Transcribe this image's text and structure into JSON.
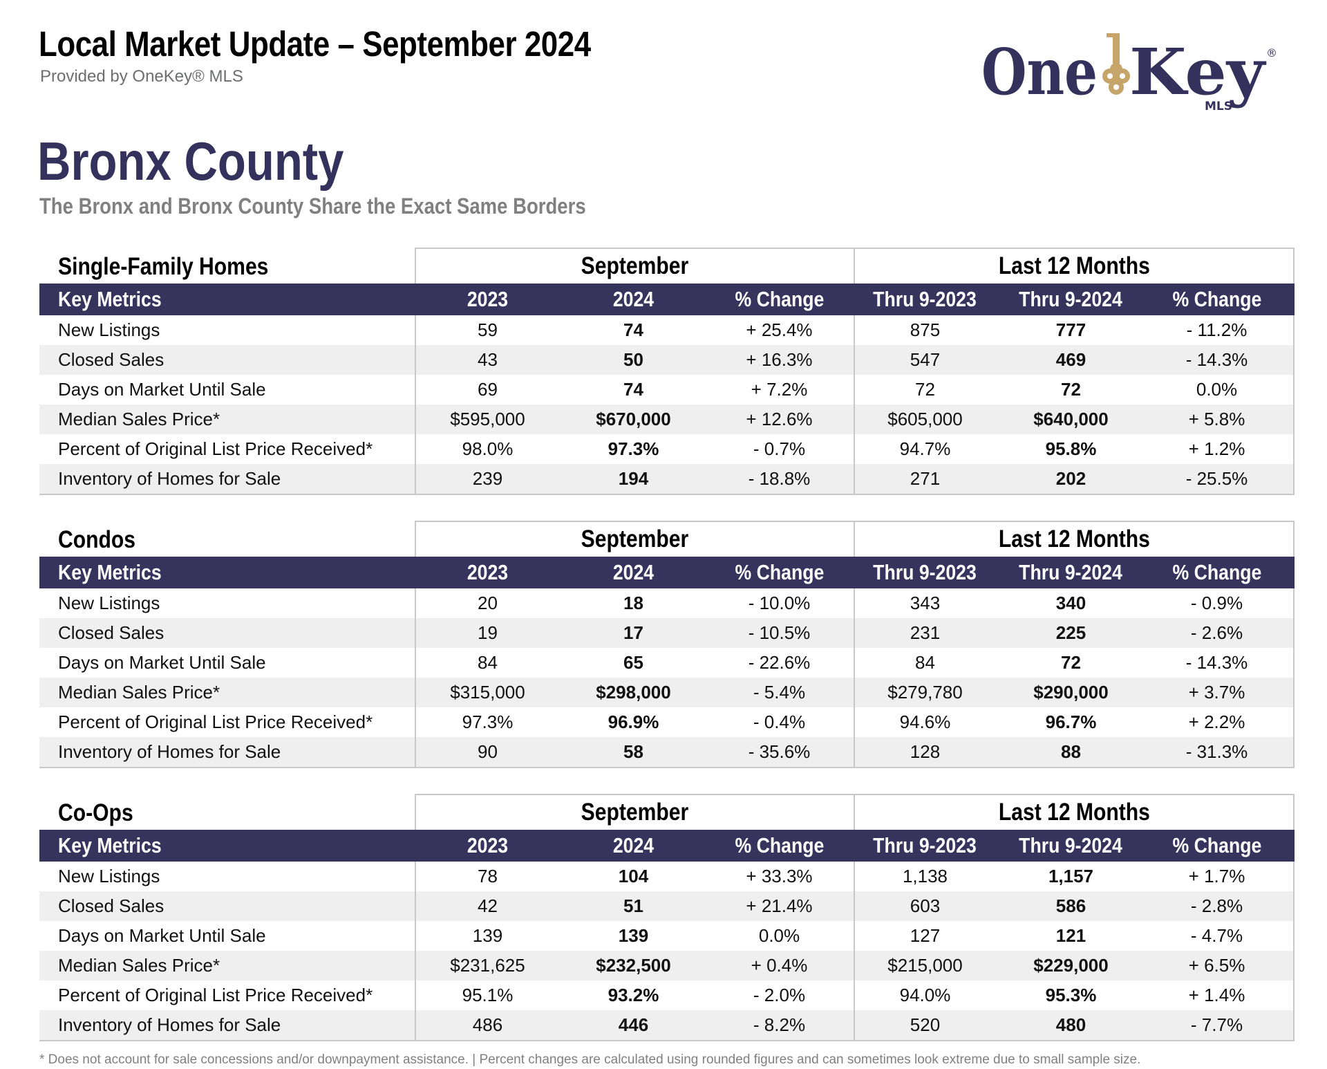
{
  "header": {
    "title": "Local Market Update – September 2024",
    "provider": "Provided by OneKey® MLS"
  },
  "logo": {
    "word1": "One",
    "word2": "Key",
    "registered": "®",
    "sub": "MLS",
    "colors": {
      "navy": "#34325c",
      "gold": "#c6a56b"
    }
  },
  "county": {
    "title": "Bronx County",
    "subtitle": "The Bronx and Bronx County Share the Exact Same Borders"
  },
  "colors": {
    "header_bg": "#36335d",
    "alt_row": "#efefef",
    "border": "#c8c8c8"
  },
  "sections": [
    {
      "name": "Single-Family Homes",
      "group1": "September",
      "group2": "Last 12 Months",
      "columns": [
        "Key Metrics",
        "2023",
        "2024",
        "% Change",
        "Thru 9-2023",
        "Thru 9-2024",
        "% Change"
      ],
      "rows": [
        [
          "New Listings",
          "59",
          "74",
          "+ 25.4%",
          "875",
          "777",
          "- 11.2%"
        ],
        [
          "Closed Sales",
          "43",
          "50",
          "+ 16.3%",
          "547",
          "469",
          "- 14.3%"
        ],
        [
          "Days on Market Until Sale",
          "69",
          "74",
          "+ 7.2%",
          "72",
          "72",
          "0.0%"
        ],
        [
          "Median Sales Price*",
          "$595,000",
          "$670,000",
          "+ 12.6%",
          "$605,000",
          "$640,000",
          "+ 5.8%"
        ],
        [
          "Percent of Original List Price Received*",
          "98.0%",
          "97.3%",
          "- 0.7%",
          "94.7%",
          "95.8%",
          "+ 1.2%"
        ],
        [
          "Inventory of Homes for Sale",
          "239",
          "194",
          "- 18.8%",
          "271",
          "202",
          "- 25.5%"
        ]
      ]
    },
    {
      "name": "Condos",
      "group1": "September",
      "group2": "Last 12 Months",
      "columns": [
        "Key Metrics",
        "2023",
        "2024",
        "% Change",
        "Thru 9-2023",
        "Thru 9-2024",
        "% Change"
      ],
      "rows": [
        [
          "New Listings",
          "20",
          "18",
          "- 10.0%",
          "343",
          "340",
          "- 0.9%"
        ],
        [
          "Closed Sales",
          "19",
          "17",
          "- 10.5%",
          "231",
          "225",
          "- 2.6%"
        ],
        [
          "Days on Market Until Sale",
          "84",
          "65",
          "- 22.6%",
          "84",
          "72",
          "- 14.3%"
        ],
        [
          "Median Sales Price*",
          "$315,000",
          "$298,000",
          "- 5.4%",
          "$279,780",
          "$290,000",
          "+ 3.7%"
        ],
        [
          "Percent of Original List Price Received*",
          "97.3%",
          "96.9%",
          "- 0.4%",
          "94.6%",
          "96.7%",
          "+ 2.2%"
        ],
        [
          "Inventory of Homes for Sale",
          "90",
          "58",
          "- 35.6%",
          "128",
          "88",
          "- 31.3%"
        ]
      ]
    },
    {
      "name": "Co-Ops",
      "group1": "September",
      "group2": "Last 12 Months",
      "columns": [
        "Key Metrics",
        "2023",
        "2024",
        "% Change",
        "Thru 9-2023",
        "Thru 9-2024",
        "% Change"
      ],
      "rows": [
        [
          "New Listings",
          "78",
          "104",
          "+ 33.3%",
          "1,138",
          "1,157",
          "+ 1.7%"
        ],
        [
          "Closed Sales",
          "42",
          "51",
          "+ 21.4%",
          "603",
          "586",
          "- 2.8%"
        ],
        [
          "Days on Market Until Sale",
          "139",
          "139",
          "0.0%",
          "127",
          "121",
          "- 4.7%"
        ],
        [
          "Median Sales Price*",
          "$231,625",
          "$232,500",
          "+ 0.4%",
          "$215,000",
          "$229,000",
          "+ 6.5%"
        ],
        [
          "Percent of Original List Price Received*",
          "95.1%",
          "93.2%",
          "- 2.0%",
          "94.0%",
          "95.3%",
          "+ 1.4%"
        ],
        [
          "Inventory of Homes for Sale",
          "486",
          "446",
          "- 8.2%",
          "520",
          "480",
          "- 7.7%"
        ]
      ]
    }
  ],
  "footnote": "* Does not account for sale concessions and/or downpayment assistance. | Percent changes are calculated using rounded figures and can sometimes look extreme due to small sample size."
}
